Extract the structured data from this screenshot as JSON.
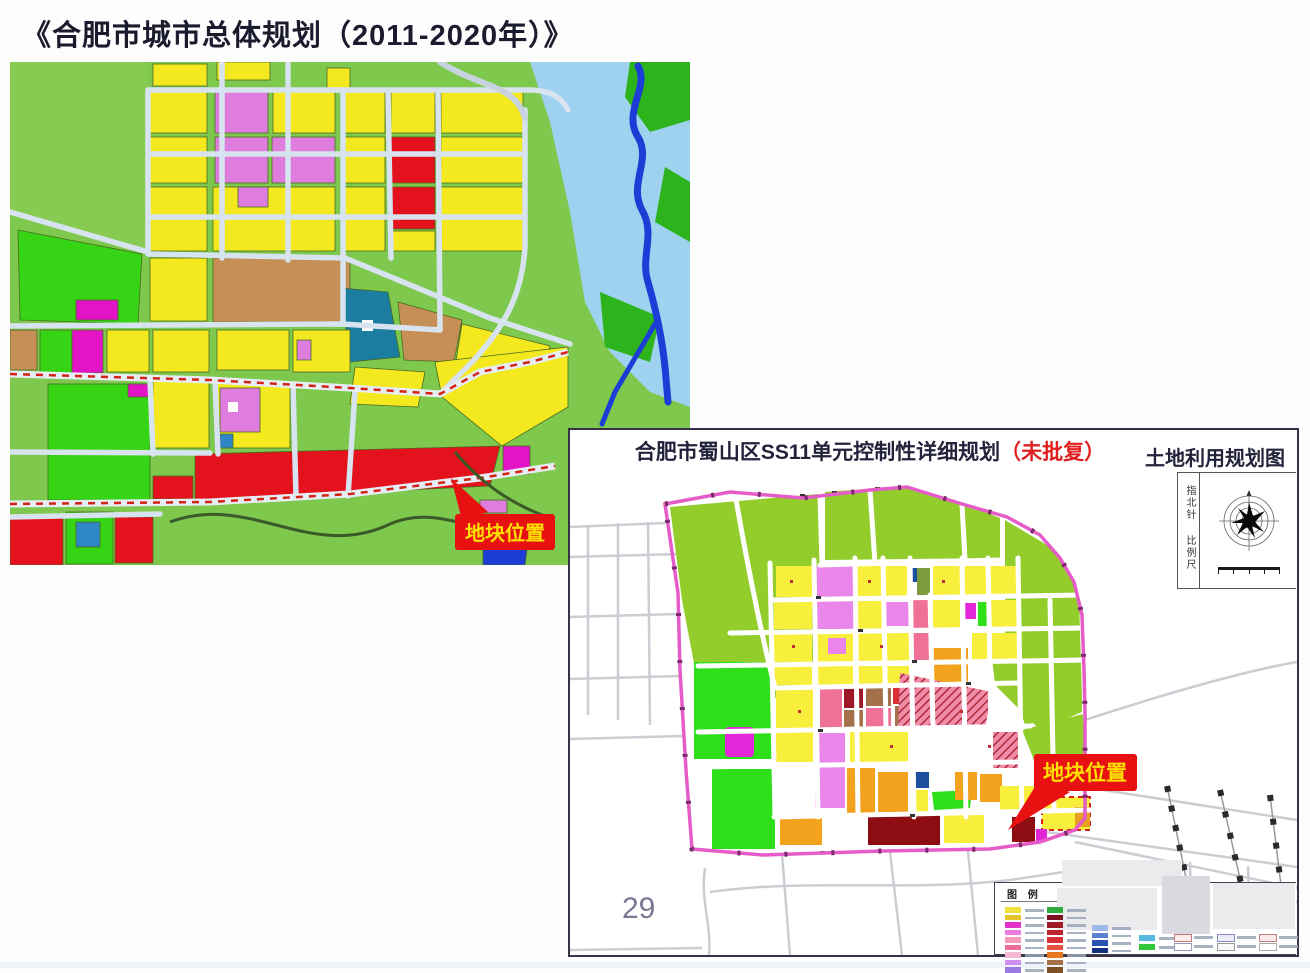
{
  "page": {
    "title": "《合肥市城市总体规划（2011-2020年）》",
    "sheet_number": "29"
  },
  "master_plan_map": {
    "callout_label": "地块位置"
  },
  "detail_plan_map": {
    "title": "合肥市蜀山区SS11单元控制性详细规划",
    "status_note": "（未批复）",
    "map_type_label": "土地利用规划图",
    "north_arrow_label": "指北针",
    "scale_label": "比例尺",
    "callout_label": "地块位置",
    "legend_title": "图 例",
    "legend": {
      "columns": [
        {
          "type": "fill",
          "colors": [
            "#f2e13c",
            "#e3c52a",
            "#e332c8",
            "#ee7ce0",
            "#f49ab8",
            "#ef6e96",
            "#f2b8d4",
            "#cf8ef0",
            "#9a7ae0"
          ]
        },
        {
          "type": "fill",
          "colors": [
            "#2ead3c",
            "#7c1120",
            "#9e1828",
            "#bc2430",
            "#da3038",
            "#e85040",
            "#e87820",
            "#a5714a",
            "#7e5026"
          ]
        },
        {
          "type": "fill",
          "colors": [
            "#9ab8e8",
            "#5a80d0",
            "#2a50b0",
            "#14317e"
          ]
        },
        {
          "type": "fill",
          "colors": [
            "#58b8e0",
            "#30c838"
          ]
        },
        {
          "type": "outline",
          "colors": [
            {
              "fill": "#fdecec",
              "stroke": "#c87878"
            },
            {
              "fill": "#ffffff",
              "stroke": "#9a9ab8"
            }
          ]
        },
        {
          "type": "outline",
          "colors": [
            {
              "fill": "#ececf8",
              "stroke": "#8888c0"
            },
            {
              "fill": "#f8f8f8",
              "stroke": "#999999"
            }
          ]
        },
        {
          "type": "outline",
          "colors": [
            {
              "fill": "#fdeaea",
              "stroke": "#c08080"
            },
            {
              "fill": "#ffffff",
              "stroke": "#aaaaaa"
            }
          ]
        }
      ]
    }
  },
  "colors": {
    "callout_red": "#e81111",
    "callout_text_yellow": "#ffe000",
    "unit_boundary_pink": "#e55cc8",
    "dashed_line_red": "#d42314",
    "parcel_yellow": "#f4e81e",
    "parcel_yellow_2": "#f8ef3d",
    "background_green": "#7ec84d",
    "greenland_light": "#92cd2b",
    "park_bright_green": "#2ee019",
    "parcel_red": "#e3121c",
    "parcel_brown": "#c58f55",
    "parcel_violet": "#df7ddf",
    "parcel_magenta": "#e214c6",
    "parcel_rose": "#ef7195",
    "parcel_maroon": "#8e0d12",
    "parcel_orange": "#f2a21c",
    "water_light_blue": "#9fd2ef",
    "river_dark_blue": "#1c3ed6",
    "road_light": "#d7e3ef",
    "outside_road_gray": "#ccccd4"
  }
}
